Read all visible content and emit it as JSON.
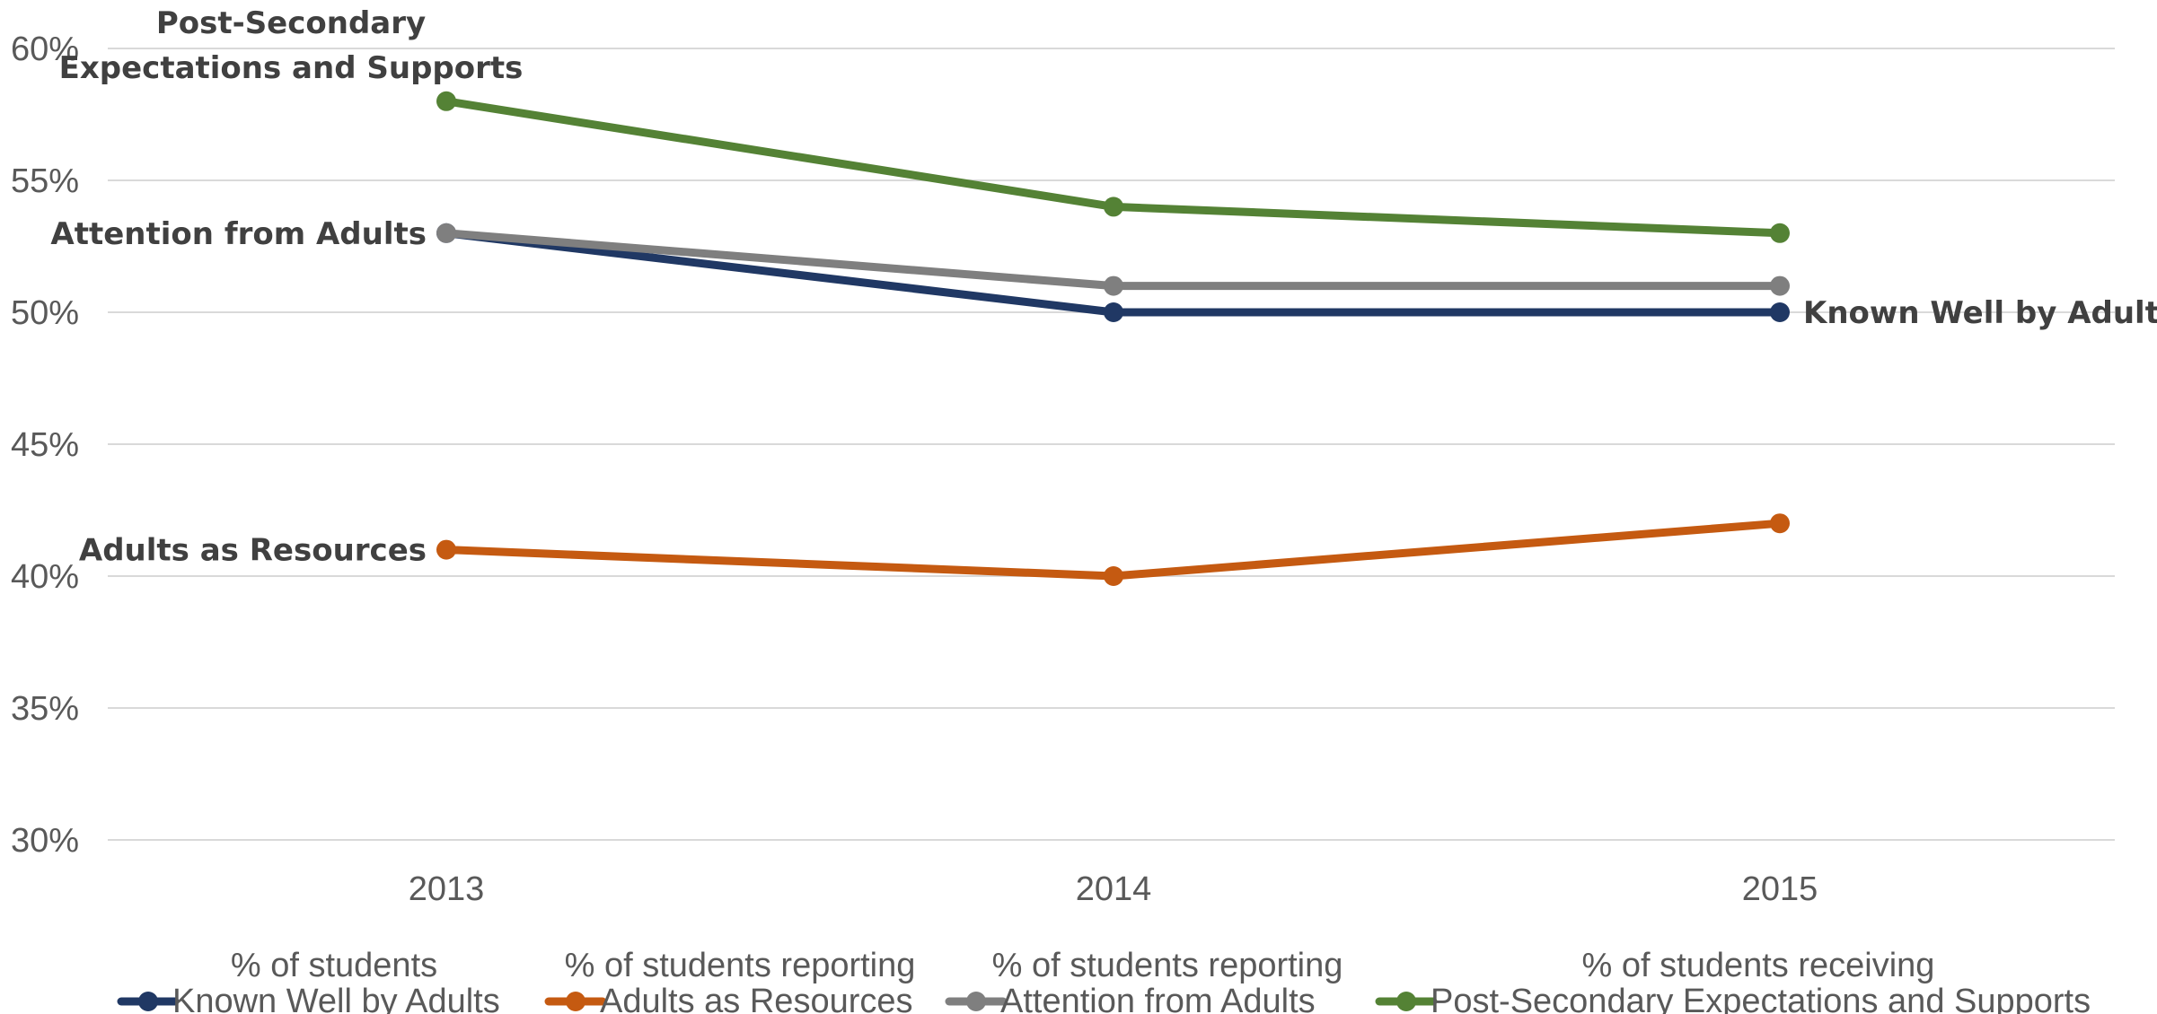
{
  "chart_data": {
    "type": "line",
    "x": [
      "2013",
      "2014",
      "2015"
    ],
    "ylim": [
      0.3,
      0.6
    ],
    "y_ticks": [
      "30%",
      "35%",
      "40%",
      "45%",
      "50%",
      "55%",
      "60%"
    ],
    "y_tick_values": [
      0.3,
      0.35,
      0.4,
      0.45,
      0.5,
      0.55,
      0.6
    ],
    "grid": true,
    "legend_position": "bottom",
    "series": [
      {
        "id": "known",
        "name": "% of students Known Well by Adults",
        "legend_lines": [
          "% of students",
          "Known Well by Adults"
        ],
        "color": "#203864",
        "values": [
          0.53,
          0.5,
          0.5
        ]
      },
      {
        "id": "resources",
        "name": "% of students reporting Adults as Resources",
        "legend_lines": [
          "% of students reporting",
          "Adults as Resources"
        ],
        "color": "#C55A11",
        "values": [
          0.41,
          0.4,
          0.42
        ]
      },
      {
        "id": "attention",
        "name": "% of students reporting Attention from Adults",
        "legend_lines": [
          "% of students reporting",
          "Attention from Adults"
        ],
        "color": "#7F7F7F",
        "values": [
          0.53,
          0.51,
          0.51
        ]
      },
      {
        "id": "postsec",
        "name": "% of students receiving Post-Secondary Expectations and Supports",
        "legend_lines": [
          "% of students receiving",
          "Post-Secondary Expectations and Supports"
        ],
        "color": "#548235",
        "values": [
          0.58,
          0.54,
          0.53
        ]
      }
    ],
    "annotations": [
      {
        "series": "postsec",
        "lines": [
          "Post-Secondary",
          "Expectations and Supports"
        ]
      },
      {
        "series": "attention",
        "lines": [
          "Attention from Adults"
        ]
      },
      {
        "series": "resources",
        "lines": [
          "Adults as Resources"
        ]
      },
      {
        "series": "known",
        "lines": [
          "Known Well by Adults"
        ]
      }
    ]
  }
}
